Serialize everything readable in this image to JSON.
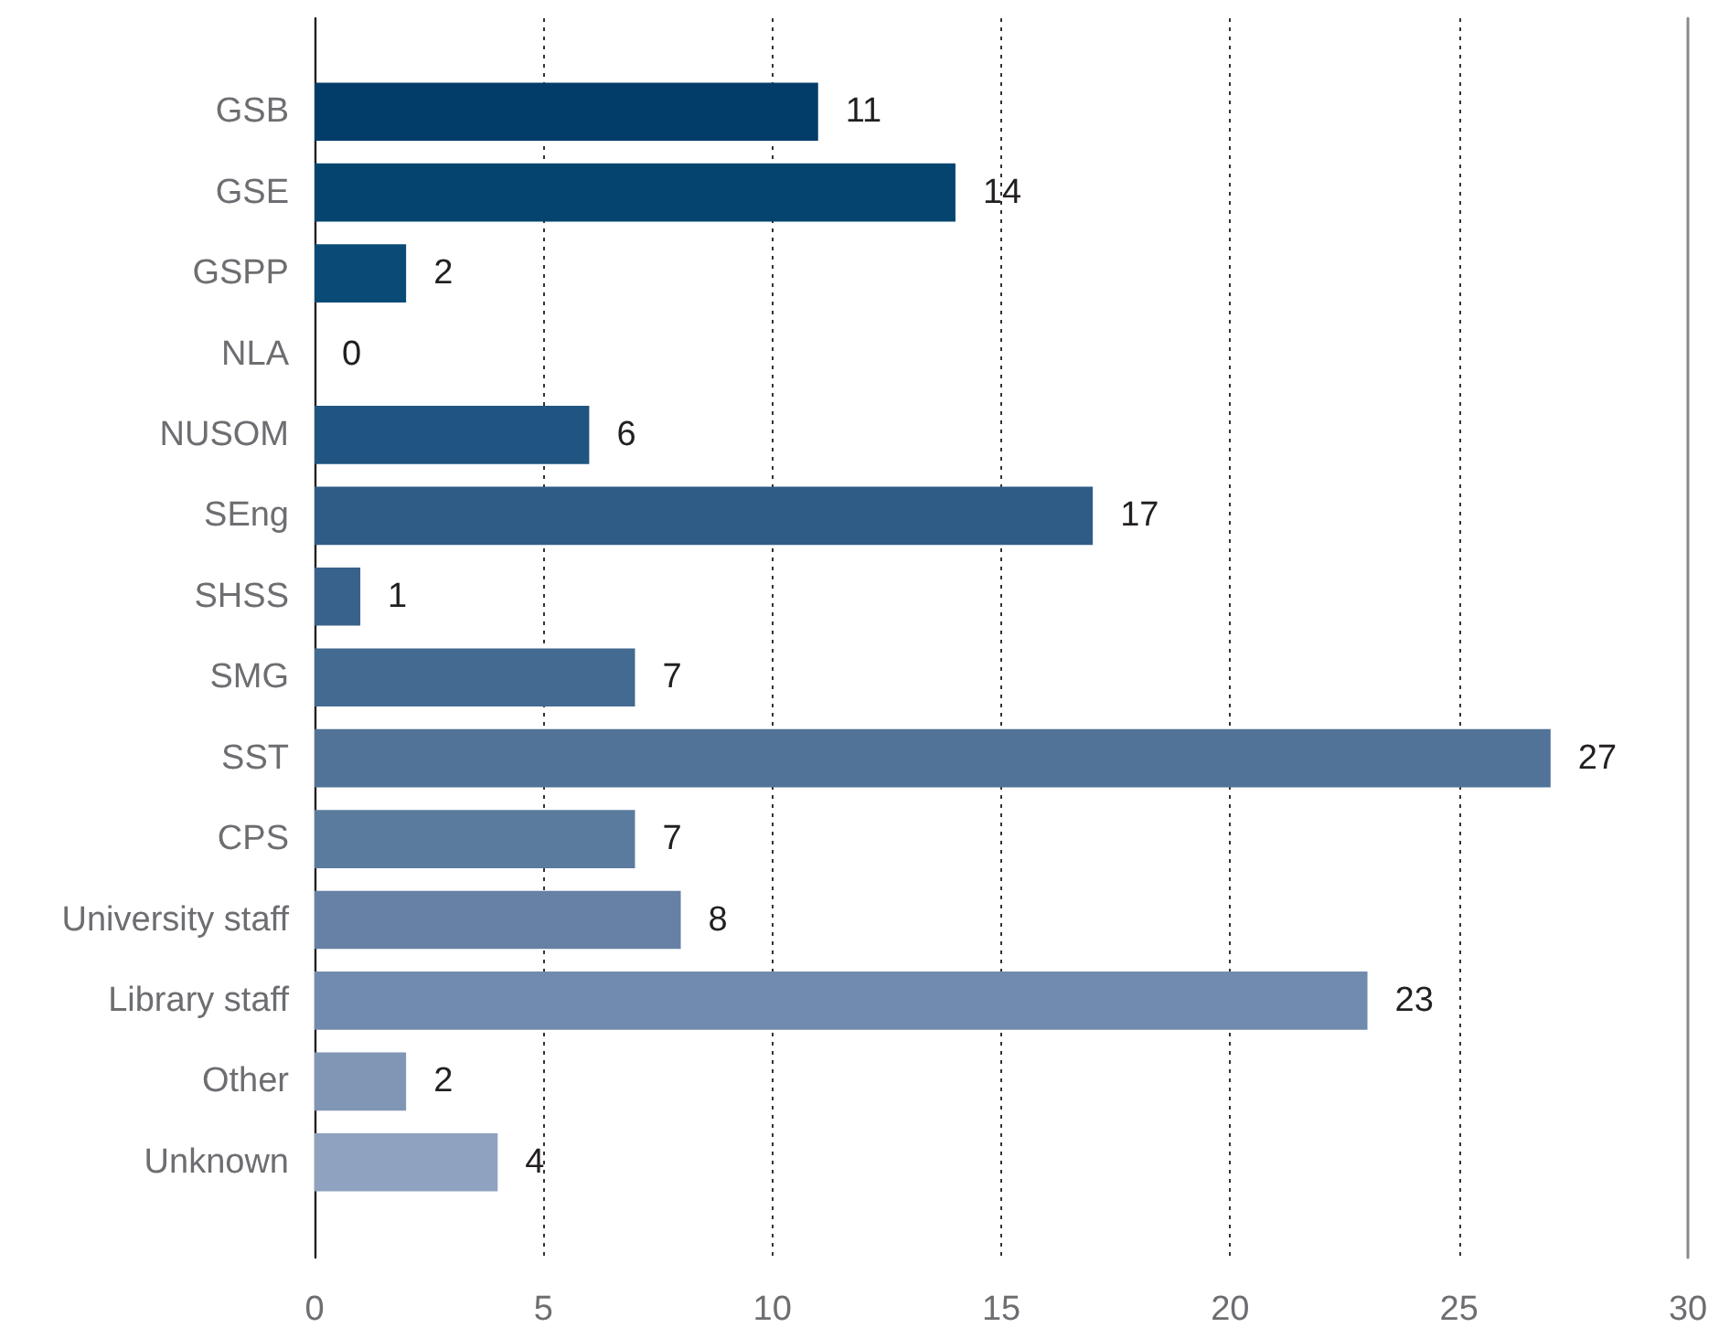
{
  "chart_data": {
    "type": "bar",
    "orientation": "horizontal",
    "categories": [
      "GSB",
      "GSE",
      "GSPP",
      "NLA",
      "NUSOM",
      "SEng",
      "SHSS",
      "SMG",
      "SST",
      "CPS",
      "University staff",
      "Library staff",
      "Other",
      "Unknown"
    ],
    "values": [
      11,
      14,
      2,
      0,
      6,
      17,
      1,
      7,
      27,
      7,
      8,
      23,
      2,
      4
    ],
    "colors": [
      "#023c69",
      "#04446f",
      "#0a4a77",
      "#154f7c",
      "#1f5580",
      "#2f5c86",
      "#38628b",
      "#436a90",
      "#517398",
      "#5b7b9e",
      "#6781a5",
      "#718bae",
      "#8096b5",
      "#8fa2bf"
    ],
    "xlim": [
      0,
      30
    ],
    "xticks": [
      0,
      5,
      10,
      15,
      20,
      25,
      30
    ],
    "grid": "x",
    "data_labels": true
  }
}
